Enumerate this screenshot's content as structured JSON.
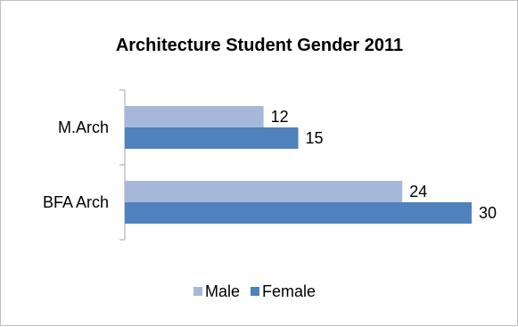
{
  "chart_data": {
    "type": "bar",
    "orientation": "horizontal",
    "title": "Architecture Student Gender 2011",
    "xlabel": "",
    "ylabel": "",
    "categories": [
      "M.Arch",
      "BFA Arch"
    ],
    "series": [
      {
        "name": "Male",
        "values": [
          12,
          24
        ],
        "color": "#a6b8d9"
      },
      {
        "name": "Female",
        "values": [
          15,
          30
        ],
        "color": "#4f81bd"
      }
    ],
    "xlim": [
      0,
      30
    ],
    "grid": false,
    "data_labels": true,
    "legend_position": "bottom"
  }
}
